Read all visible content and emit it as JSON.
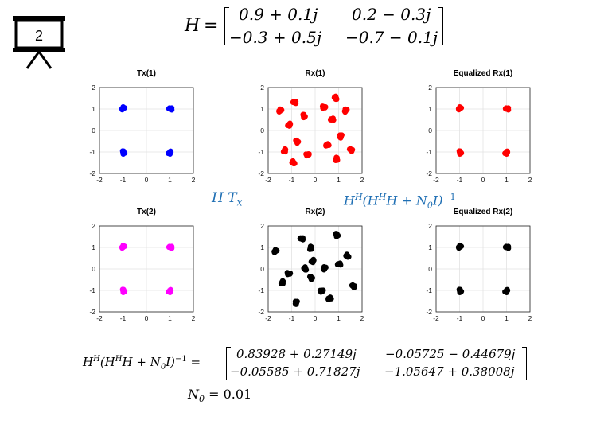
{
  "slide": {
    "number": "2"
  },
  "channel": {
    "label": "H",
    "row1": [
      "0.9 + 0.1j",
      "0.2 − 0.3j"
    ],
    "row2": [
      "−0.3 + 0.5j",
      "−0.7 − 0.1j"
    ]
  },
  "annotations": {
    "ht": "H T",
    "ht_sub": "x",
    "eq_prefix": "H",
    "eq_sup1": "H",
    "eq_mid": "(H",
    "eq_sup2": "H",
    "eq_tail": "H +  N",
    "eq_n_sub": "0",
    "eq_end": "I)",
    "eq_exp": "−1"
  },
  "formula": {
    "lhs_a": "H",
    "lhs_sup1": "H",
    "lhs_b": "(H",
    "lhs_sup2": "H",
    "lhs_c": "H +  N",
    "lhs_sub": "0",
    "lhs_d": "I)",
    "lhs_exp": "−1",
    "lhs_eq": "=",
    "row1": [
      "0.83928 + 0.27149j",
      "−0.05725 − 0.44679j"
    ],
    "row2": [
      "−0.05585 + 0.71827j",
      "−1.05647 + 0.38008j"
    ]
  },
  "noise": {
    "label": "N",
    "sub": "0",
    "value": "= 0.01"
  },
  "chart_data": [
    {
      "type": "scatter",
      "title": "Tx(1)",
      "color": "#0000ff",
      "xlim": [
        -2,
        2
      ],
      "ylim": [
        -2,
        2
      ],
      "xticks": [
        -2,
        -1,
        0,
        1,
        2
      ],
      "yticks": [
        -2,
        -1,
        0,
        1,
        2
      ],
      "grid": true,
      "points": [
        [
          -1,
          1
        ],
        [
          1,
          1
        ],
        [
          -1,
          -1
        ],
        [
          1,
          -1
        ]
      ]
    },
    {
      "type": "scatter",
      "title": "Rx(1)",
      "color": "#ff0000",
      "xlim": [
        -2,
        2
      ],
      "ylim": [
        -2,
        2
      ],
      "xticks": [
        -2,
        -1,
        0,
        1,
        2
      ],
      "yticks": [
        -2,
        -1,
        0,
        1,
        2
      ],
      "grid": true,
      "points": [
        [
          -1.5,
          0.9
        ],
        [
          -0.9,
          1.3
        ],
        [
          -0.5,
          0.7
        ],
        [
          -1.1,
          0.3
        ],
        [
          0.4,
          1.1
        ],
        [
          0.9,
          1.5
        ],
        [
          1.3,
          0.9
        ],
        [
          0.7,
          0.5
        ],
        [
          -0.8,
          -0.5
        ],
        [
          -1.3,
          -0.9
        ],
        [
          -0.3,
          -1.1
        ],
        [
          -0.9,
          -1.5
        ],
        [
          1.1,
          -0.3
        ],
        [
          0.5,
          -0.7
        ],
        [
          1.5,
          -0.9
        ],
        [
          0.9,
          -1.3
        ]
      ]
    },
    {
      "type": "scatter",
      "title": "Equalized Rx(1)",
      "color": "#ff0000",
      "xlim": [
        -2,
        2
      ],
      "ylim": [
        -2,
        2
      ],
      "xticks": [
        -2,
        -1,
        0,
        1,
        2
      ],
      "yticks": [
        -2,
        -1,
        0,
        1,
        2
      ],
      "grid": true,
      "points": [
        [
          -1,
          1
        ],
        [
          1,
          1
        ],
        [
          -1,
          -1
        ],
        [
          1,
          -1
        ]
      ]
    },
    {
      "type": "scatter",
      "title": "Tx(2)",
      "color": "#ff00ff",
      "xlim": [
        -2,
        2
      ],
      "ylim": [
        -2,
        2
      ],
      "xticks": [
        -2,
        -1,
        0,
        1,
        2
      ],
      "yticks": [
        -2,
        -1,
        0,
        1,
        2
      ],
      "grid": true,
      "points": [
        [
          -1,
          1
        ],
        [
          1,
          1
        ],
        [
          -1,
          -1
        ],
        [
          1,
          -1
        ]
      ]
    },
    {
      "type": "scatter",
      "title": "Rx(2)",
      "color": "#000000",
      "xlim": [
        -2,
        2
      ],
      "ylim": [
        -2,
        2
      ],
      "xticks": [
        -2,
        -1,
        0,
        1,
        2
      ],
      "yticks": [
        -2,
        -1,
        0,
        1,
        2
      ],
      "grid": true,
      "points": [
        [
          -1.7,
          0.8
        ],
        [
          -0.6,
          1.4
        ],
        [
          0.9,
          1.6
        ],
        [
          -0.1,
          0.4
        ],
        [
          -1.1,
          -0.2
        ],
        [
          -0.4,
          0
        ],
        [
          0.4,
          0
        ],
        [
          1.0,
          0.2
        ],
        [
          -0.2,
          -0.4
        ],
        [
          -1.4,
          -0.6
        ],
        [
          0.3,
          -1.0
        ],
        [
          1.4,
          0.6
        ],
        [
          -0.8,
          -1.6
        ],
        [
          0.6,
          -1.4
        ],
        [
          1.6,
          -0.8
        ],
        [
          -0.2,
          1.0
        ]
      ]
    },
    {
      "type": "scatter",
      "title": "Equalized Rx(2)",
      "color": "#000000",
      "xlim": [
        -2,
        2
      ],
      "ylim": [
        -2,
        2
      ],
      "xticks": [
        -2,
        -1,
        0,
        1,
        2
      ],
      "yticks": [
        -2,
        -1,
        0,
        1,
        2
      ],
      "grid": true,
      "points": [
        [
          -1,
          1
        ],
        [
          1,
          1
        ],
        [
          -1,
          -1
        ],
        [
          1,
          -1
        ]
      ]
    }
  ]
}
